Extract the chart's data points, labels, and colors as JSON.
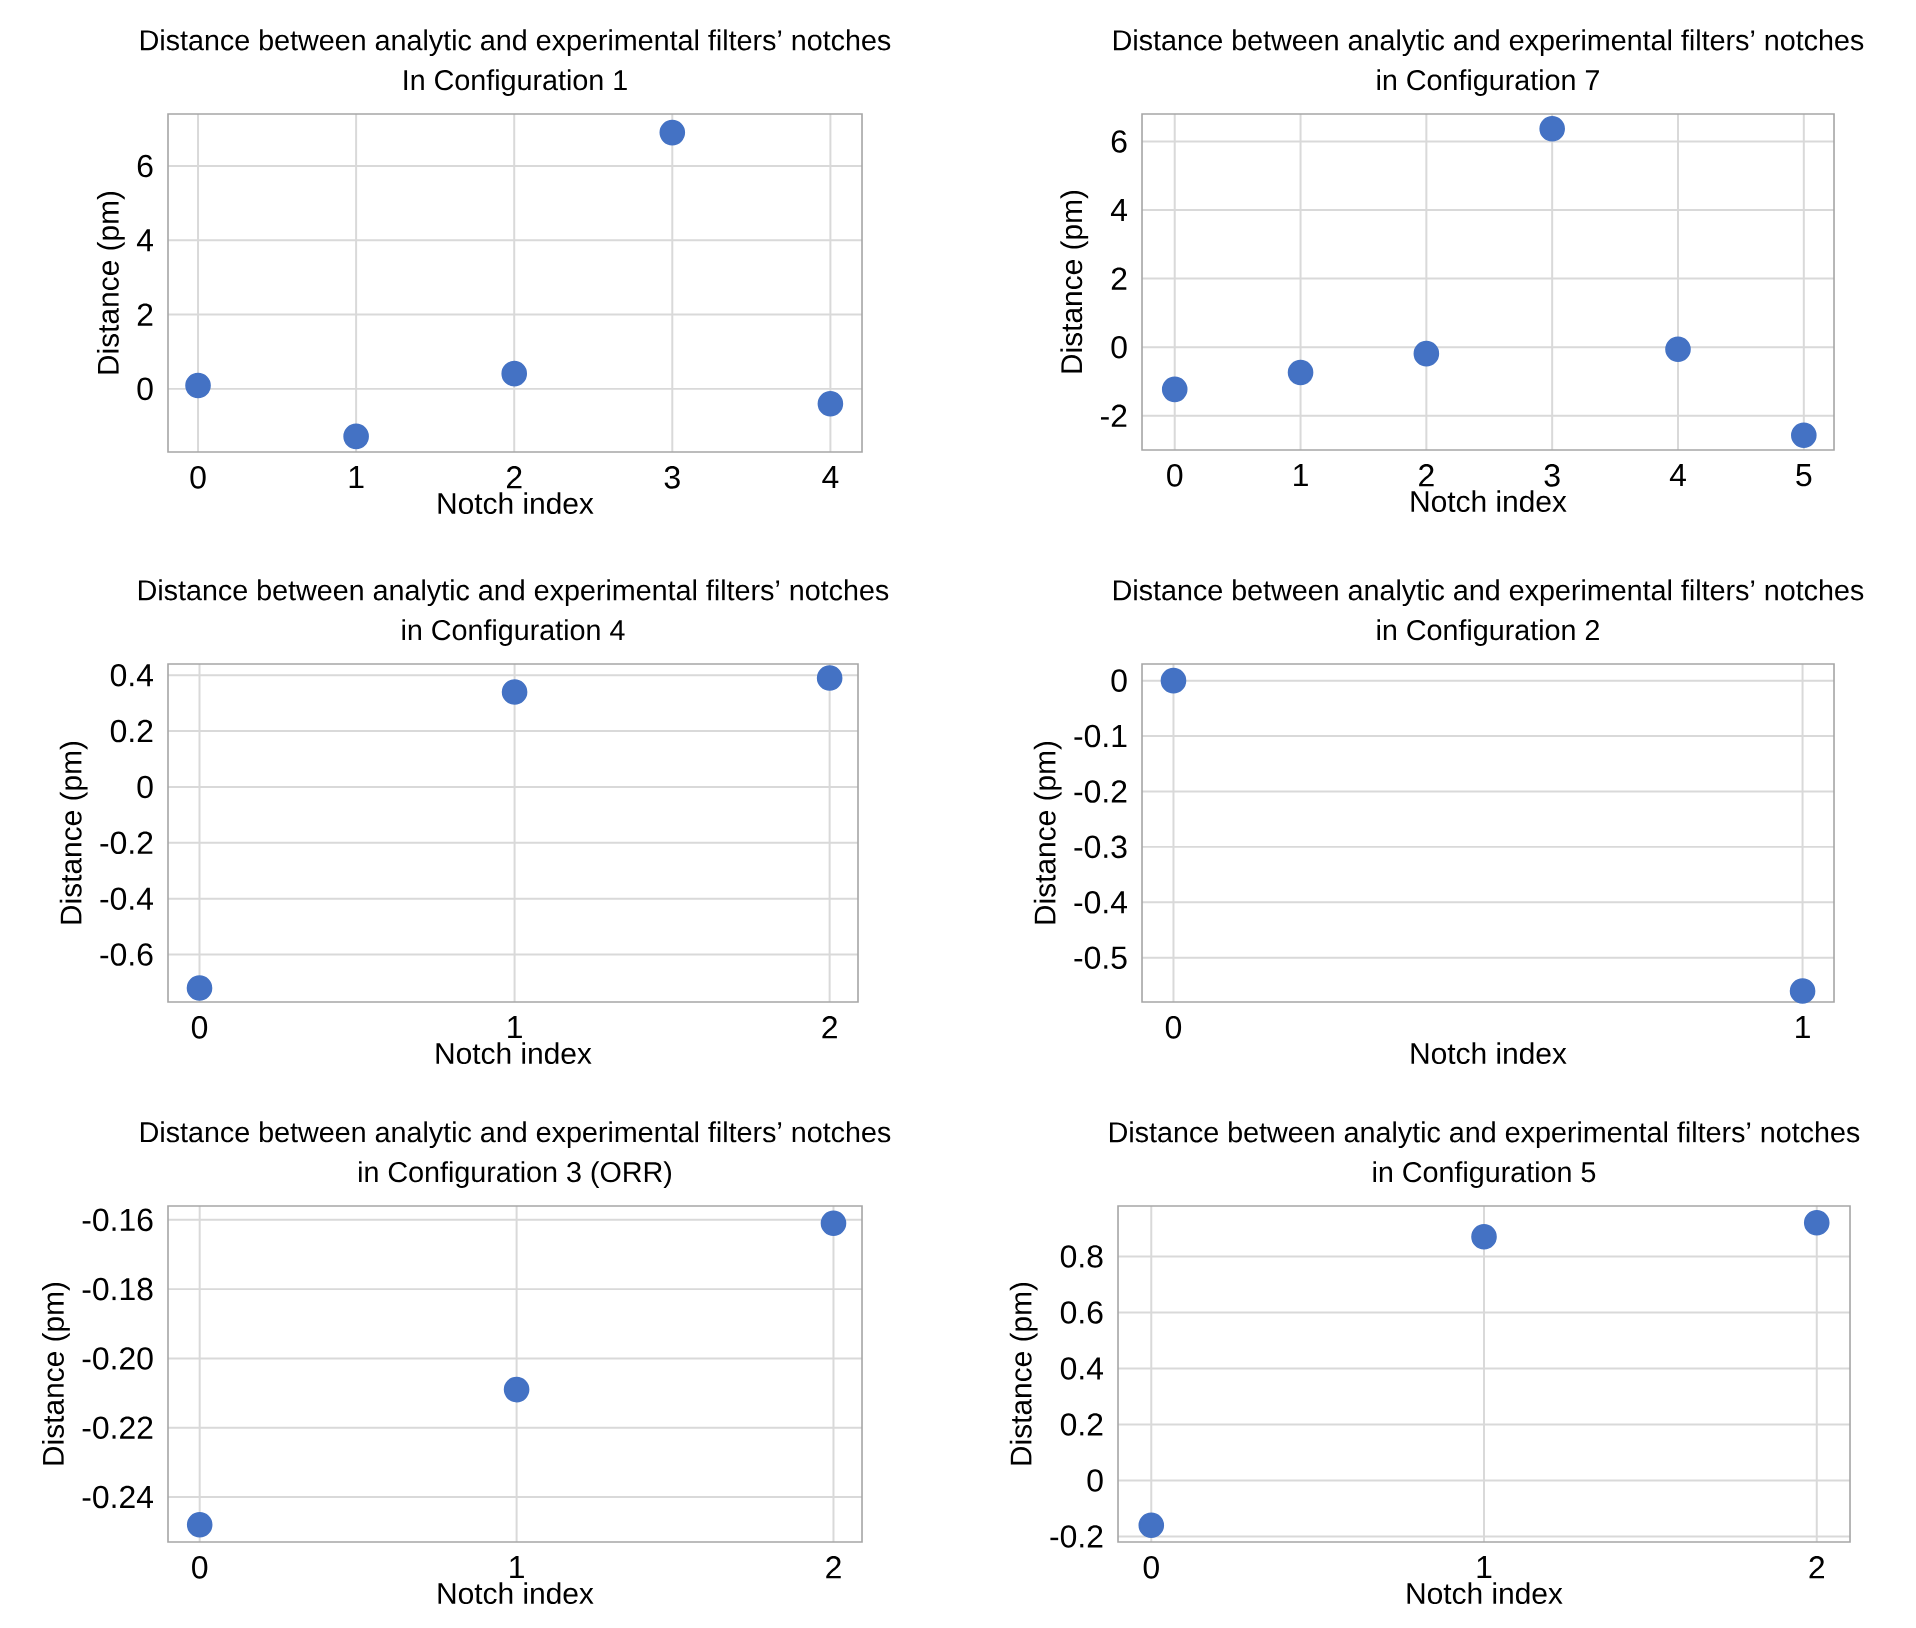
{
  "chart_data": [
    {
      "type": "scatter",
      "title": "Distance between analytic and experimental filters’ notches",
      "subtitle": "In Configuration 1",
      "xlabel": "Notch index",
      "ylabel": "Distance (pm)",
      "x": [
        0,
        1,
        2,
        3,
        4
      ],
      "values": [
        0.09,
        -1.28,
        0.41,
        6.9,
        -0.4
      ],
      "xlim": [
        -0.19,
        4.2
      ],
      "ylim": [
        -1.7,
        7.4
      ],
      "xticks": [
        0,
        1,
        2,
        3,
        4
      ],
      "yticks": [
        0,
        2,
        4,
        6
      ],
      "color": "#4472c4",
      "grid": true
    },
    {
      "type": "scatter",
      "title": "Distance between analytic and experimental filters’ notches",
      "subtitle": "in Configuration 7",
      "xlabel": "Notch index",
      "ylabel": "Distance (pm)",
      "x": [
        0,
        1,
        2,
        3,
        4,
        5
      ],
      "values": [
        -1.23,
        -0.74,
        -0.19,
        6.37,
        -0.06,
        -2.57
      ],
      "xlim": [
        -0.26,
        5.24
      ],
      "ylim": [
        -3.0,
        6.8
      ],
      "xticks": [
        0,
        1,
        2,
        3,
        4,
        5
      ],
      "yticks": [
        -2,
        0,
        2,
        4,
        6
      ],
      "color": "#4472c4",
      "grid": true
    },
    {
      "type": "scatter",
      "title": "Distance between analytic and experimental filters’ notches",
      "subtitle": "in Configuration 4",
      "xlabel": "Notch index",
      "ylabel": "Distance (pm)",
      "x": [
        0,
        1,
        2
      ],
      "values": [
        -0.72,
        0.34,
        0.39
      ],
      "xlim": [
        -0.1,
        2.09
      ],
      "ylim": [
        -0.77,
        0.44
      ],
      "xticks": [
        0,
        1,
        2
      ],
      "yticks": [
        -0.6,
        -0.4,
        -0.2,
        0,
        0.2,
        0.4
      ],
      "color": "#4472c4",
      "grid": true
    },
    {
      "type": "scatter",
      "title": "Distance between analytic and experimental filters’ notches",
      "subtitle": "in Configuration 2",
      "xlabel": "Notch index",
      "ylabel": "Distance (pm)",
      "x": [
        0,
        1
      ],
      "values": [
        0.0,
        -0.56
      ],
      "xlim": [
        -0.05,
        1.05
      ],
      "ylim": [
        -0.58,
        0.03
      ],
      "xticks": [
        0,
        1
      ],
      "yticks": [
        -0.5,
        -0.4,
        -0.3,
        -0.2,
        -0.1,
        0
      ],
      "color": "#4472c4",
      "grid": true
    },
    {
      "type": "scatter",
      "title": "Distance between analytic and experimental filters’ notches",
      "subtitle": "in Configuration 3 (ORR)",
      "xlabel": "Notch index",
      "ylabel": "Distance (pm)",
      "x": [
        0,
        1,
        2
      ],
      "values": [
        -0.248,
        -0.209,
        -0.161
      ],
      "xlim": [
        -0.1,
        2.09
      ],
      "ylim": [
        -0.253,
        -0.156
      ],
      "xticks": [
        0,
        1,
        2
      ],
      "yticks": [
        {
          "value": -0.24,
          "label": "-0.24"
        },
        {
          "value": -0.22,
          "label": "-0.22"
        },
        {
          "value": -0.2,
          "label": "-0.20"
        },
        {
          "value": -0.18,
          "label": "-0.18"
        },
        {
          "value": -0.16,
          "label": "-0.16"
        }
      ],
      "color": "#4472c4",
      "grid": true
    },
    {
      "type": "scatter",
      "title": "Distance between analytic and experimental filters’ notches",
      "subtitle": "in Configuration 5",
      "xlabel": "Notch index",
      "ylabel": "Distance (pm)",
      "x": [
        0,
        1,
        2
      ],
      "values": [
        -0.16,
        0.87,
        0.92
      ],
      "xlim": [
        -0.1,
        2.1
      ],
      "ylim": [
        -0.22,
        0.98
      ],
      "xticks": [
        0,
        1,
        2
      ],
      "yticks": [
        -0.2,
        0,
        0.2,
        0.4,
        0.6,
        0.8
      ],
      "color": "#4472c4",
      "grid": true
    }
  ]
}
